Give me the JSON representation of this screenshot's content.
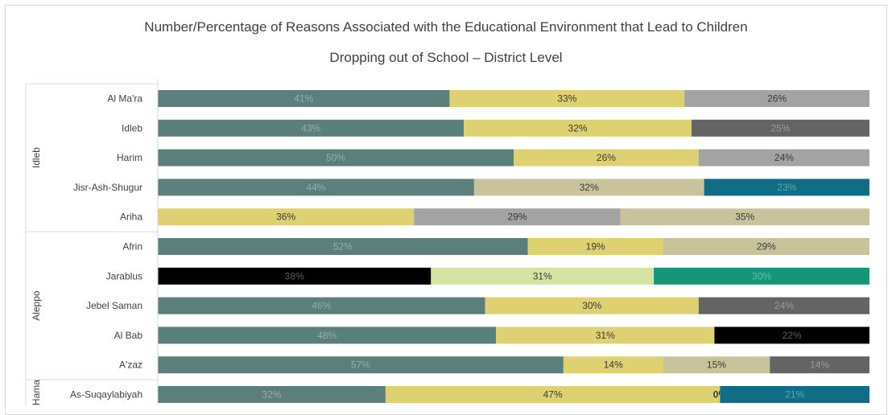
{
  "chart_data": {
    "type": "bar",
    "orientation": "horizontal",
    "stacked": true,
    "percent_stacked": true,
    "title": "Number/Percentage of Reasons Associated with the Educational Environment that Lead to Children",
    "subtitle": "Dropping out of School – District Level",
    "groups": [
      {
        "name": "Idleb",
        "categories": [
          "Al Ma'ra",
          "Idleb",
          "Harim",
          "Jisr-Ash-Shugur",
          "Ariha"
        ]
      },
      {
        "name": "Aleppo",
        "categories": [
          "Afrin",
          "Jarablus",
          "Jebel Saman",
          "Al Bab",
          "A'zaz"
        ]
      },
      {
        "name": "Hama",
        "categories": [
          "As-Suqaylabiyah"
        ]
      }
    ],
    "categories": [
      "Al Ma'ra",
      "Idleb",
      "Harim",
      "Jisr-Ash-Shugur",
      "Ariha",
      "Afrin",
      "Jarablus",
      "Jebel Saman",
      "Al Bab",
      "A'zaz",
      "As-Suqaylabiyah"
    ],
    "rows": [
      {
        "category": "Al Ma'ra",
        "segments": [
          {
            "value": 41,
            "label": "41%",
            "color": "#5b7f7b"
          },
          {
            "value": 33,
            "label": "33%",
            "color": "#ddd171"
          },
          {
            "value": 26,
            "label": "26%",
            "color": "#a3a3a3"
          }
        ]
      },
      {
        "category": "Idleb",
        "segments": [
          {
            "value": 43,
            "label": "43%",
            "color": "#5b7f7b"
          },
          {
            "value": 32,
            "label": "32%",
            "color": "#ddd171"
          },
          {
            "value": 25,
            "label": "25%",
            "color": "#646464"
          }
        ]
      },
      {
        "category": "Harim",
        "segments": [
          {
            "value": 50,
            "label": "50%",
            "color": "#5b7f7b"
          },
          {
            "value": 26,
            "label": "26%",
            "color": "#ddd171"
          },
          {
            "value": 24,
            "label": "24%",
            "color": "#a3a3a3"
          }
        ]
      },
      {
        "category": "Jisr-Ash-Shugur",
        "segments": [
          {
            "value": 44,
            "label": "44%",
            "color": "#5b7f7b"
          },
          {
            "value": 32,
            "label": "32%",
            "color": "#c9c39b"
          },
          {
            "value": 23,
            "label": "23%",
            "color": "#0f6e86"
          }
        ]
      },
      {
        "category": "Ariha",
        "segments": [
          {
            "value": 36,
            "label": "36%",
            "color": "#ddd171"
          },
          {
            "value": 29,
            "label": "29%",
            "color": "#a3a3a3"
          },
          {
            "value": 35,
            "label": "35%",
            "color": "#c9c39b"
          }
        ]
      },
      {
        "category": "Afrin",
        "segments": [
          {
            "value": 52,
            "label": "52%",
            "color": "#5b7f7b"
          },
          {
            "value": 19,
            "label": "19%",
            "color": "#ddd171"
          },
          {
            "value": 29,
            "label": "29%",
            "color": "#c9c39b"
          }
        ]
      },
      {
        "category": "Jarablus",
        "segments": [
          {
            "value": 38,
            "label": "38%",
            "color": "#000000"
          },
          {
            "value": 31,
            "label": "31%",
            "color": "#d5e3a3"
          },
          {
            "value": 30,
            "label": "30%",
            "color": "#15967a"
          }
        ]
      },
      {
        "category": "Jebel Saman",
        "segments": [
          {
            "value": 46,
            "label": "46%",
            "color": "#5b7f7b"
          },
          {
            "value": 30,
            "label": "30%",
            "color": "#ddd171"
          },
          {
            "value": 24,
            "label": "24%",
            "color": "#646464"
          }
        ]
      },
      {
        "category": "Al Bab",
        "segments": [
          {
            "value": 48,
            "label": "48%",
            "color": "#5b7f7b"
          },
          {
            "value": 31,
            "label": "31%",
            "color": "#ddd171"
          },
          {
            "value": 22,
            "label": "22%",
            "color": "#000000"
          }
        ]
      },
      {
        "category": "A'zaz",
        "segments": [
          {
            "value": 57,
            "label": "57%",
            "color": "#5b7f7b"
          },
          {
            "value": 14,
            "label": "14%",
            "color": "#ddd171"
          },
          {
            "value": 15,
            "label": "15%",
            "color": "#c9c39b"
          },
          {
            "value": 14,
            "label": "14%",
            "color": "#646464"
          }
        ]
      },
      {
        "category": "As-Suqaylabiyah",
        "segments": [
          {
            "value": 32,
            "label": "32%",
            "color": "#5b7f7b"
          },
          {
            "value": 47,
            "label": "47%",
            "color": "#ddd171"
          },
          {
            "value": 0,
            "label": "0%",
            "color": "#ddd171"
          },
          {
            "value": 21,
            "label": "21%",
            "color": "#0f6e86"
          }
        ]
      }
    ],
    "xlim": [
      0,
      100
    ],
    "grid": false,
    "legend": "none"
  }
}
